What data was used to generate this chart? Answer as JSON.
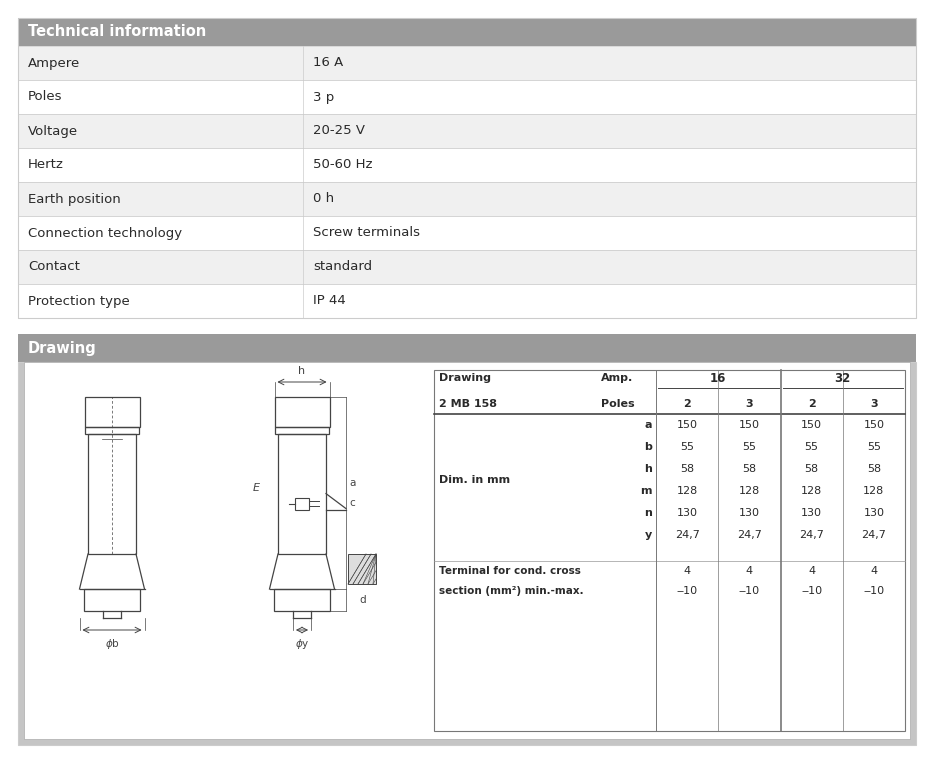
{
  "fig_width": 9.34,
  "fig_height": 7.63,
  "dpi": 100,
  "bg_color": "#ffffff",
  "header_bg": "#9a9a9a",
  "header_text_color": "#ffffff",
  "row_bg_light": "#f0f0f0",
  "row_bg_white": "#ffffff",
  "border_color": "#cccccc",
  "text_color": "#2a2a2a",
  "dark_line": "#555555",
  "tech_title": "Technical information",
  "tech_rows": [
    [
      "Ampere",
      "16 A"
    ],
    [
      "Poles",
      "3 p"
    ],
    [
      "Voltage",
      "20-25 V"
    ],
    [
      "Hertz",
      "50-60 Hz"
    ],
    [
      "Earth position",
      "0 h"
    ],
    [
      "Connection technology",
      "Screw terminals"
    ],
    [
      "Contact",
      "standard"
    ],
    [
      "Protection type",
      "IP 44"
    ]
  ],
  "drawing_title": "Drawing",
  "draw_table_rows": [
    [
      "a",
      "150",
      "150",
      "150",
      "150"
    ],
    [
      "b",
      "55",
      "55",
      "55",
      "55"
    ],
    [
      "h",
      "58",
      "58",
      "58",
      "58"
    ],
    [
      "m",
      "128",
      "128",
      "128",
      "128"
    ],
    [
      "n",
      "130",
      "130",
      "130",
      "130"
    ],
    [
      "y",
      "24,7",
      "24,7",
      "24,7",
      "24,7"
    ]
  ],
  "terminal_row1": [
    "Terminal for cond. cross",
    "4",
    "4",
    "4",
    "4"
  ],
  "terminal_row2": [
    "section (mm²) min.-max.",
    "‒10",
    "‒10",
    "‒10",
    "‒10"
  ]
}
